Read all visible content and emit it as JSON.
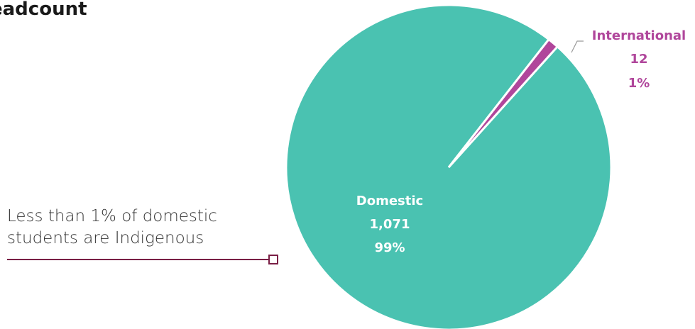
{
  "title": "eadcount",
  "annotation": {
    "line1": "Less than 1% of domestic",
    "line2": "students are Indigenous"
  },
  "colors": {
    "domestic": "#4ac2b1",
    "international": "#b0469b",
    "annotation_line": "#7a1f45",
    "white_label": "#ffffff"
  },
  "chart_data": {
    "type": "pie",
    "title": "eadcount",
    "slices": [
      {
        "name": "Domestic",
        "value": 1071,
        "value_label": "1,071",
        "percent_label": "99%",
        "color": "#4ac2b1"
      },
      {
        "name": "International",
        "value": 12,
        "value_label": "12",
        "percent_label": "1%",
        "color": "#b0469b"
      }
    ]
  }
}
